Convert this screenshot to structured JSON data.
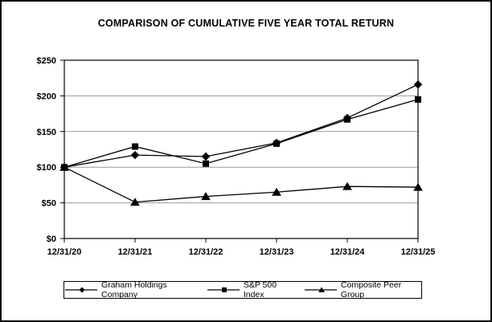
{
  "title": "COMPARISON OF CUMULATIVE FIVE YEAR TOTAL RETURN",
  "chart_data": {
    "type": "line",
    "categories": [
      "12/31/20",
      "12/31/21",
      "12/31/22",
      "12/31/23",
      "12/31/24",
      "12/31/25"
    ],
    "series": [
      {
        "name": "Graham Holdings Company",
        "marker": "diamond",
        "values": [
          100,
          117,
          115,
          134,
          169,
          216
        ]
      },
      {
        "name": "S&P 500 Index",
        "marker": "square",
        "values": [
          100,
          129,
          105,
          133,
          167,
          195
        ]
      },
      {
        "name": "Composite Peer Group",
        "marker": "triangle",
        "values": [
          100,
          51,
          59,
          65,
          73,
          72
        ]
      }
    ],
    "ylim": [
      0,
      250
    ],
    "ytick_step": 50,
    "ytick_labels": [
      "$0",
      "$50",
      "$100",
      "$150",
      "$200",
      "$250"
    ],
    "grid": true,
    "legend_position": "bottom",
    "colors": {
      "line": "#000000",
      "gridline": "#999999",
      "axis": "#000000",
      "background": "#ffffff"
    }
  }
}
